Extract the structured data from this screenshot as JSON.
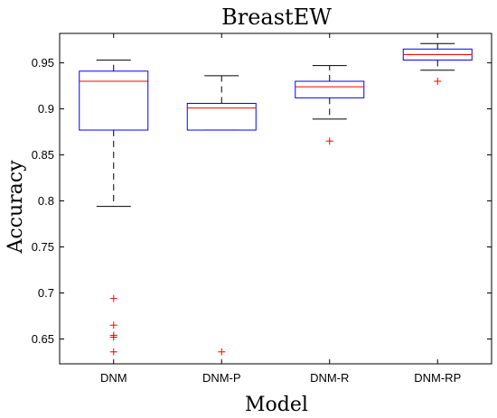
{
  "chart_data": {
    "type": "box",
    "title": "BreastEW",
    "xlabel": "Model",
    "ylabel": "Accuracy",
    "categories": [
      "DNM",
      "DNM-P",
      "DNM-R",
      "DNM-RP"
    ],
    "ylim": [
      0.623,
      0.982
    ],
    "yticks": [
      0.65,
      0.7,
      0.75,
      0.8,
      0.85,
      0.9,
      0.95
    ],
    "ytick_labels": [
      "0.65",
      "0.7",
      "0.75",
      "0.8",
      "0.85",
      "0.9",
      "0.95"
    ],
    "grid": false,
    "colors": {
      "box": "#0000ff",
      "median": "#ff0000",
      "whisker": "#000000",
      "outlier": "#ff0000",
      "axes": "#000000"
    },
    "series": [
      {
        "category": "DNM",
        "whisker_low": 0.794,
        "q1": 0.877,
        "median": 0.93,
        "q3": 0.941,
        "whisker_high": 0.953,
        "outliers": [
          0.694,
          0.665,
          0.654,
          0.652,
          0.636
        ]
      },
      {
        "category": "DNM-P",
        "whisker_low": 0.877,
        "q1": 0.877,
        "median": 0.901,
        "q3": 0.906,
        "whisker_high": 0.936,
        "outliers": [
          0.636
        ]
      },
      {
        "category": "DNM-R",
        "whisker_low": 0.889,
        "q1": 0.912,
        "median": 0.924,
        "q3": 0.93,
        "whisker_high": 0.947,
        "outliers": [
          0.865
        ]
      },
      {
        "category": "DNM-RP",
        "whisker_low": 0.942,
        "q1": 0.953,
        "median": 0.959,
        "q3": 0.965,
        "whisker_high": 0.971,
        "outliers": [
          0.93
        ]
      }
    ]
  }
}
